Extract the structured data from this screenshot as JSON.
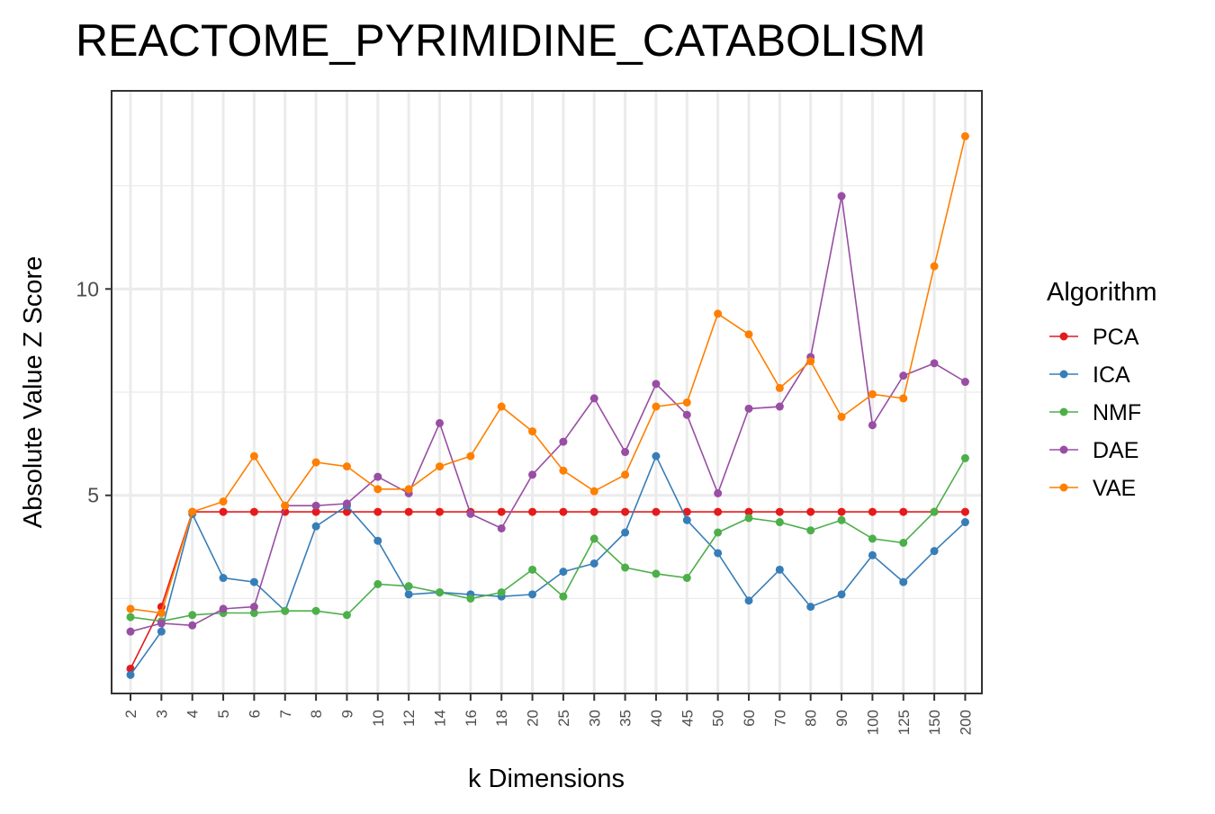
{
  "chart_data": {
    "type": "line",
    "title": "REACTOME_PYRIMIDINE_CATABOLISM",
    "xlabel": "k Dimensions",
    "ylabel": "Absolute Value Z Score",
    "categories": [
      "2",
      "3",
      "4",
      "5",
      "6",
      "7",
      "8",
      "9",
      "10",
      "12",
      "14",
      "16",
      "18",
      "20",
      "25",
      "30",
      "35",
      "40",
      "45",
      "50",
      "60",
      "70",
      "80",
      "90",
      "100",
      "125",
      "150",
      "200"
    ],
    "yticks": [
      5,
      10
    ],
    "ylim": [
      0.2,
      14.8
    ],
    "grid": true,
    "legend": {
      "title": "Algorithm",
      "position": "right"
    },
    "series": [
      {
        "name": "PCA",
        "color": "#E41A1C",
        "values": [
          0.8,
          2.3,
          4.6,
          4.6,
          4.6,
          4.6,
          4.6,
          4.6,
          4.6,
          4.6,
          4.6,
          4.6,
          4.6,
          4.6,
          4.6,
          4.6,
          4.6,
          4.6,
          4.6,
          4.6,
          4.6,
          4.6,
          4.6,
          4.6,
          4.6,
          4.6,
          4.6,
          4.6
        ]
      },
      {
        "name": "ICA",
        "color": "#377EB8",
        "values": [
          0.65,
          1.7,
          4.55,
          3.0,
          2.9,
          2.2,
          4.25,
          4.75,
          3.9,
          2.6,
          2.65,
          2.6,
          2.55,
          2.6,
          3.15,
          3.35,
          4.1,
          5.95,
          4.4,
          3.6,
          2.45,
          3.2,
          2.3,
          2.6,
          3.55,
          2.9,
          3.65,
          4.35
        ]
      },
      {
        "name": "NMF",
        "color": "#4DAF4A",
        "values": [
          2.05,
          1.95,
          2.1,
          2.15,
          2.15,
          2.2,
          2.2,
          2.1,
          2.85,
          2.8,
          2.65,
          2.5,
          2.65,
          3.2,
          2.55,
          3.95,
          3.25,
          3.1,
          3.0,
          4.1,
          4.45,
          4.35,
          4.15,
          4.4,
          3.95,
          3.85,
          4.6,
          5.9
        ]
      },
      {
        "name": "DAE",
        "color": "#984EA3",
        "values": [
          1.7,
          1.9,
          1.85,
          2.25,
          2.3,
          4.75,
          4.75,
          4.8,
          5.45,
          5.05,
          6.75,
          4.55,
          4.2,
          5.5,
          6.3,
          7.35,
          6.05,
          7.7,
          6.95,
          5.05,
          7.1,
          7.15,
          8.35,
          12.25,
          6.7,
          7.9,
          8.2,
          7.75
        ]
      },
      {
        "name": "VAE",
        "color": "#FF7F00",
        "values": [
          2.25,
          2.15,
          4.6,
          4.85,
          5.95,
          4.75,
          5.8,
          5.7,
          5.15,
          5.15,
          5.7,
          5.95,
          7.15,
          6.55,
          5.6,
          5.1,
          5.5,
          7.15,
          7.25,
          9.4,
          8.9,
          7.6,
          8.25,
          6.9,
          7.45,
          7.35,
          10.55,
          13.7
        ]
      }
    ]
  }
}
